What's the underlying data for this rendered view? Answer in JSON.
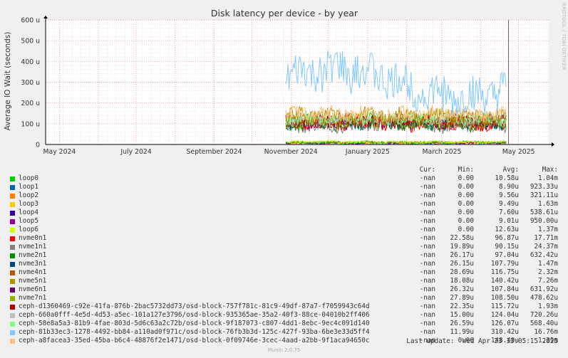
{
  "chart_data": {
    "type": "line",
    "title": "Disk latency per device - by year",
    "ylabel": "Average IO Wait (seconds)",
    "ylim": [
      0,
      600
    ],
    "ytick_labels": [
      "0",
      "100 u",
      "200 u",
      "300 u",
      "400 u",
      "500 u",
      "600 u"
    ],
    "ytick_values": [
      0,
      100,
      200,
      300,
      400,
      500,
      600
    ],
    "x_tick_labels": [
      "May 2024",
      "July 2024",
      "September 2024",
      "November 2024",
      "January 2025",
      "March 2025",
      "May 2025"
    ],
    "x_range": [
      "2024-04-20",
      "2025-05-25"
    ],
    "x_tick_dates": [
      "2024-05-01",
      "2024-07-01",
      "2024-09-01",
      "2024-11-01",
      "2025-01-01",
      "2025-03-01",
      "2025-05-01"
    ],
    "now_marker": "2025-04-23",
    "data_start": "2024-10-28",
    "series": [
      {
        "name": "loop0",
        "color": "#00cc00",
        "level": 10,
        "amp": 6
      },
      {
        "name": "loop1",
        "color": "#0066b3",
        "level": 9,
        "amp": 5
      },
      {
        "name": "loop2",
        "color": "#ff8000",
        "level": 9,
        "amp": 5
      },
      {
        "name": "loop3",
        "color": "#ffcc00",
        "level": 9,
        "amp": 5
      },
      {
        "name": "loop4",
        "color": "#330099",
        "level": 7,
        "amp": 4
      },
      {
        "name": "loop5",
        "color": "#990099",
        "level": 9,
        "amp": 5
      },
      {
        "name": "loop6",
        "color": "#ccff00",
        "level": 12,
        "amp": 6
      },
      {
        "name": "nvme0n1",
        "color": "#ff0000",
        "level": 97,
        "amp": 30
      },
      {
        "name": "nvme1n1",
        "color": "#808080",
        "level": 90,
        "amp": 30
      },
      {
        "name": "nvme2n1",
        "color": "#008f00",
        "level": 97,
        "amp": 30
      },
      {
        "name": "nvme3n1",
        "color": "#00487d",
        "level": 108,
        "amp": 30
      },
      {
        "name": "nvme4n1",
        "color": "#b35a00",
        "level": 117,
        "amp": 30
      },
      {
        "name": "nvme5n1",
        "color": "#b38f00",
        "level": 140,
        "amp": 35
      },
      {
        "name": "nvme6n1",
        "color": "#6b006b",
        "level": 108,
        "amp": 30
      },
      {
        "name": "nvme7n1",
        "color": "#8fb300",
        "level": 108,
        "amp": 30
      },
      {
        "name": "ceph-d1360469-c92e-41fa-876b-2bac5732dd73/osd-block-757f781c-81c9-49df-87a7-f7059943c64d",
        "color": "#b30000",
        "level": 116,
        "amp": 30
      },
      {
        "name": "ceph-660a0fff-4e5d-4d53-a5ec-101a127e3796/osd-block-935365ae-35a2-40f3-88ce-04010b2ff406",
        "color": "#bebebe",
        "level": 124,
        "amp": 30
      },
      {
        "name": "ceph-58e8a5a3-81b9-4fae-803d-5d6c63a2c72b/osd-block-9f187073-c807-4dd1-8ebc-9ec4c091d140",
        "color": "#80ff80",
        "level": 126,
        "amp": 30
      },
      {
        "name": "ceph-81b33ec3-1278-4492-bb84-a110ad0f971c/osd-block-76fb3b3d-125c-427f-93ba-6be3e33d5ff4",
        "color": "#80c9ff",
        "level": 310,
        "amp": 90
      },
      {
        "name": "ceph-a8facea3-35ed-45ba-b6c4-48876f2e1471/osd-block-0f09746e-3cec-4aad-a2bb-9f1aca94650c",
        "color": "#ffc080",
        "level": 148,
        "amp": 35
      }
    ]
  },
  "legend": {
    "headers": {
      "cur": "Cur:",
      "min": "Min:",
      "avg": "Avg:",
      "max": "Max:"
    },
    "rows": [
      {
        "cur": "-nan",
        "min": "0.00",
        "avg": "10.58u",
        "max": "1.04m"
      },
      {
        "cur": "-nan",
        "min": "0.00",
        "avg": "8.90u",
        "max": "923.33u"
      },
      {
        "cur": "-nan",
        "min": "0.00",
        "avg": "9.56u",
        "max": "321.11u"
      },
      {
        "cur": "-nan",
        "min": "0.00",
        "avg": "9.49u",
        "max": "1.63m"
      },
      {
        "cur": "-nan",
        "min": "0.00",
        "avg": "7.60u",
        "max": "538.61u"
      },
      {
        "cur": "-nan",
        "min": "0.00",
        "avg": "9.01u",
        "max": "950.00u"
      },
      {
        "cur": "-nan",
        "min": "0.00",
        "avg": "12.63u",
        "max": "1.37m"
      },
      {
        "cur": "-nan",
        "min": "22.58u",
        "avg": "96.87u",
        "max": "17.71m"
      },
      {
        "cur": "-nan",
        "min": "19.89u",
        "avg": "90.15u",
        "max": "24.37m"
      },
      {
        "cur": "-nan",
        "min": "26.17u",
        "avg": "97.04u",
        "max": "632.42u"
      },
      {
        "cur": "-nan",
        "min": "26.15u",
        "avg": "107.79u",
        "max": "1.47m"
      },
      {
        "cur": "-nan",
        "min": "28.69u",
        "avg": "116.75u",
        "max": "2.32m"
      },
      {
        "cur": "-nan",
        "min": "18.08u",
        "avg": "140.42u",
        "max": "7.26m"
      },
      {
        "cur": "-nan",
        "min": "26.32u",
        "avg": "107.84u",
        "max": "631.92u"
      },
      {
        "cur": "-nan",
        "min": "27.89u",
        "avg": "108.50u",
        "max": "478.62u"
      },
      {
        "cur": "-nan",
        "min": "22.35u",
        "avg": "115.72u",
        "max": "1.93m"
      },
      {
        "cur": "-nan",
        "min": "15.00u",
        "avg": "124.04u",
        "max": "720.26u"
      },
      {
        "cur": "-nan",
        "min": "26.59u",
        "avg": "126.07u",
        "max": "568.40u"
      },
      {
        "cur": "-nan",
        "min": "11.99u",
        "avg": "310.42u",
        "max": "16.76m"
      },
      {
        "cur": "-nan",
        "min": "0.00",
        "avg": "148.40u",
        "max": "1.39m"
      }
    ]
  },
  "last_update": "Last update:  Wed Apr 23 13:05:15 2025",
  "footer": "Munin 2.0.75",
  "watermark": "RRDTOOL / TOBI OETIKER"
}
